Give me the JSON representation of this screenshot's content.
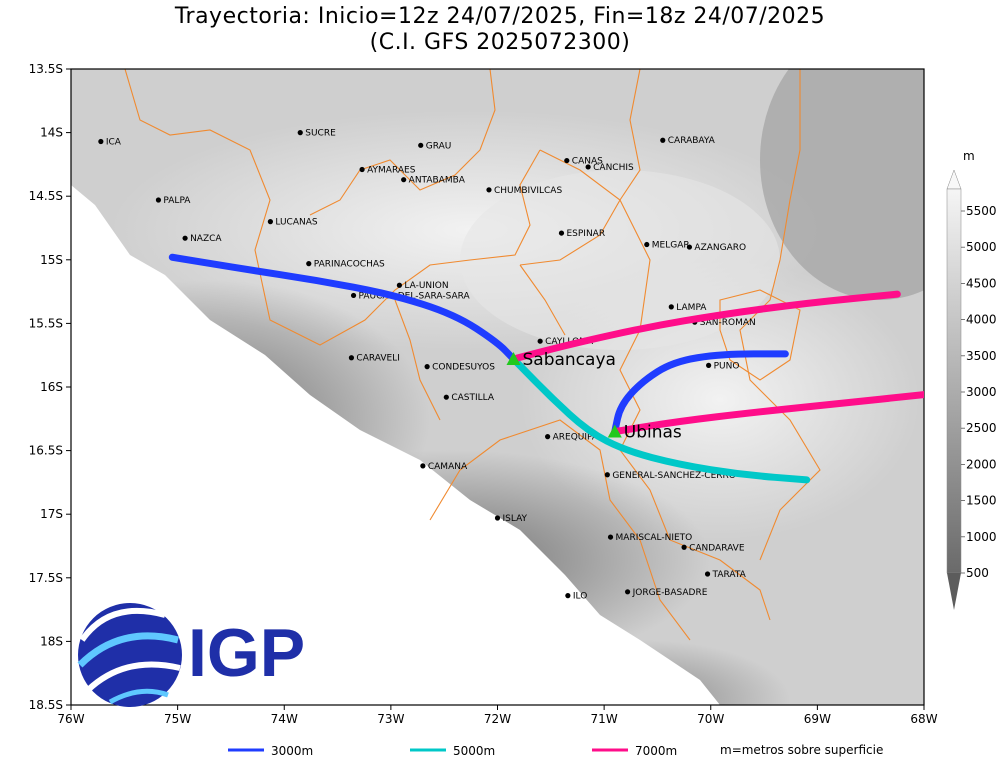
{
  "title": {
    "line1": "Trayectoria: Inicio=12z 24/07/2025, Fin=18z 24/07/2025",
    "line2": "(C.I. GFS 2025072300)"
  },
  "axes": {
    "lat_ticks": [
      "13.5S",
      "14S",
      "14.5S",
      "15S",
      "15.5S",
      "16S",
      "16.5S",
      "17S",
      "17.5S",
      "18S",
      "18.5S"
    ],
    "lon_ticks": [
      "76W",
      "75W",
      "74W",
      "73W",
      "72W",
      "71W",
      "70W",
      "69W",
      "68W"
    ],
    "lat_values": [
      -13.5,
      -14,
      -14.5,
      -15,
      -15.5,
      -16,
      -16.5,
      -17,
      -17.5,
      -18,
      -18.5
    ],
    "lon_values": [
      -76,
      -75,
      -74,
      -73,
      -72,
      -71,
      -70,
      -69,
      -68
    ],
    "lon_range": [
      -76,
      -68
    ],
    "lat_range": [
      -18.5,
      -13.5
    ]
  },
  "colorbar": {
    "unit": "m",
    "labels": [
      "500",
      "1000",
      "1500",
      "2000",
      "2500",
      "3000",
      "3500",
      "4000",
      "4500",
      "5000",
      "5500"
    ]
  },
  "provinces": [
    {
      "name": "ICA",
      "lon": -75.72,
      "lat": -14.07
    },
    {
      "name": "SUCRE",
      "lon": -73.85,
      "lat": -14.0
    },
    {
      "name": "GRAU",
      "lon": -72.72,
      "lat": -14.1
    },
    {
      "name": "CARABAYA",
      "lon": -70.45,
      "lat": -14.06
    },
    {
      "name": "CANAS",
      "lon": -71.35,
      "lat": -14.22
    },
    {
      "name": "CANCHIS",
      "lon": -71.15,
      "lat": -14.27
    },
    {
      "name": "AYMARAES",
      "lon": -73.27,
      "lat": -14.29
    },
    {
      "name": "ANTABAMBA",
      "lon": -72.88,
      "lat": -14.37
    },
    {
      "name": "CHUMBIVILCAS",
      "lon": -72.08,
      "lat": -14.45
    },
    {
      "name": "PALPA",
      "lon": -75.18,
      "lat": -14.53
    },
    {
      "name": "LUCANAS",
      "lon": -74.13,
      "lat": -14.7
    },
    {
      "name": "ESPINAR",
      "lon": -71.4,
      "lat": -14.79
    },
    {
      "name": "NAZCA",
      "lon": -74.93,
      "lat": -14.83
    },
    {
      "name": "MELGAR",
      "lon": -70.6,
      "lat": -14.88
    },
    {
      "name": "AZANGARO",
      "lon": -70.2,
      "lat": -14.9
    },
    {
      "name": "PARINACOCHAS",
      "lon": -73.77,
      "lat": -15.03
    },
    {
      "name": "LA-UNION",
      "lon": -72.92,
      "lat": -15.2
    },
    {
      "name": "PAUCAR-DEL-SARA-SARA",
      "lon": -73.35,
      "lat": -15.28
    },
    {
      "name": "LAMPA",
      "lon": -70.37,
      "lat": -15.37
    },
    {
      "name": "SAN-ROMAN",
      "lon": -70.15,
      "lat": -15.49
    },
    {
      "name": "CAYLLOMA",
      "lon": -71.6,
      "lat": -15.64
    },
    {
      "name": "CARAVELI",
      "lon": -73.37,
      "lat": -15.77
    },
    {
      "name": "CONDESUYOS",
      "lon": -72.66,
      "lat": -15.84
    },
    {
      "name": "PUNO",
      "lon": -70.02,
      "lat": -15.83
    },
    {
      "name": "CASTILLA",
      "lon": -72.48,
      "lat": -16.08
    },
    {
      "name": "AREQUIPA",
      "lon": -71.53,
      "lat": -16.39
    },
    {
      "name": "GENERAL-SANCHEZ-CERRO",
      "lon": -70.97,
      "lat": -16.69
    },
    {
      "name": "CAMANA",
      "lon": -72.7,
      "lat": -16.62
    },
    {
      "name": "ISLAY",
      "lon": -72.0,
      "lat": -17.03
    },
    {
      "name": "MARISCAL-NIETO",
      "lon": -70.94,
      "lat": -17.18
    },
    {
      "name": "CANDARAVE",
      "lon": -70.25,
      "lat": -17.26
    },
    {
      "name": "TARATA",
      "lon": -70.03,
      "lat": -17.47
    },
    {
      "name": "ILO",
      "lon": -71.34,
      "lat": -17.64
    },
    {
      "name": "JORGE-BASADRE",
      "lon": -70.78,
      "lat": -17.61
    }
  ],
  "volcanoes": [
    {
      "name": "Sabancaya",
      "lon": -71.85,
      "lat": -15.78
    },
    {
      "name": "Ubinas",
      "lon": -70.9,
      "lat": -16.35
    }
  ],
  "trajectories": [
    {
      "name": "3000m",
      "color": "#1f3cff",
      "points": [
        [
          -75.05,
          -14.98
        ],
        [
          -74.4,
          -15.07
        ],
        [
          -73.7,
          -15.16
        ],
        [
          -73.0,
          -15.27
        ],
        [
          -72.4,
          -15.43
        ],
        [
          -72.0,
          -15.65
        ],
        [
          -71.85,
          -15.78
        ]
      ]
    },
    {
      "name": "5000m",
      "color": "#00c8c8",
      "points": [
        [
          -71.85,
          -15.78
        ],
        [
          -71.5,
          -16.08
        ],
        [
          -71.15,
          -16.35
        ],
        [
          -70.8,
          -16.5
        ],
        [
          -70.3,
          -16.61
        ],
        [
          -69.7,
          -16.69
        ],
        [
          -69.1,
          -16.73
        ]
      ]
    },
    {
      "name": "7000m",
      "color": "#ff0d8a",
      "points": [
        [
          -71.85,
          -15.78
        ],
        [
          -71.3,
          -15.66
        ],
        [
          -70.6,
          -15.53
        ],
        [
          -69.9,
          -15.43
        ],
        [
          -69.1,
          -15.34
        ],
        [
          -68.25,
          -15.27
        ]
      ]
    },
    {
      "name": "3000m",
      "color": "#1f3cff",
      "points": [
        [
          -70.9,
          -16.35
        ],
        [
          -70.85,
          -16.15
        ],
        [
          -70.65,
          -15.96
        ],
        [
          -70.35,
          -15.8
        ],
        [
          -69.9,
          -15.74
        ],
        [
          -69.3,
          -15.74
        ]
      ]
    },
    {
      "name": "7000m",
      "color": "#ff0d8a",
      "points": [
        [
          -70.9,
          -16.35
        ],
        [
          -70.3,
          -16.27
        ],
        [
          -69.6,
          -16.2
        ],
        [
          -68.8,
          -16.13
        ],
        [
          -68.0,
          -16.06
        ]
      ]
    }
  ],
  "legend": [
    {
      "label": "3000m",
      "color": "#1f3cff"
    },
    {
      "label": "5000m",
      "color": "#00c8c8"
    },
    {
      "label": "7000m",
      "color": "#ff0d8a"
    }
  ],
  "legend_note": "m=metros sobre superficie",
  "logo": {
    "text": "IGP"
  },
  "colors": {
    "border": "#f08a30",
    "land_light": "#dcdcdc",
    "land_dark": "#6e6e6e",
    "volcano": "#22c81e"
  }
}
